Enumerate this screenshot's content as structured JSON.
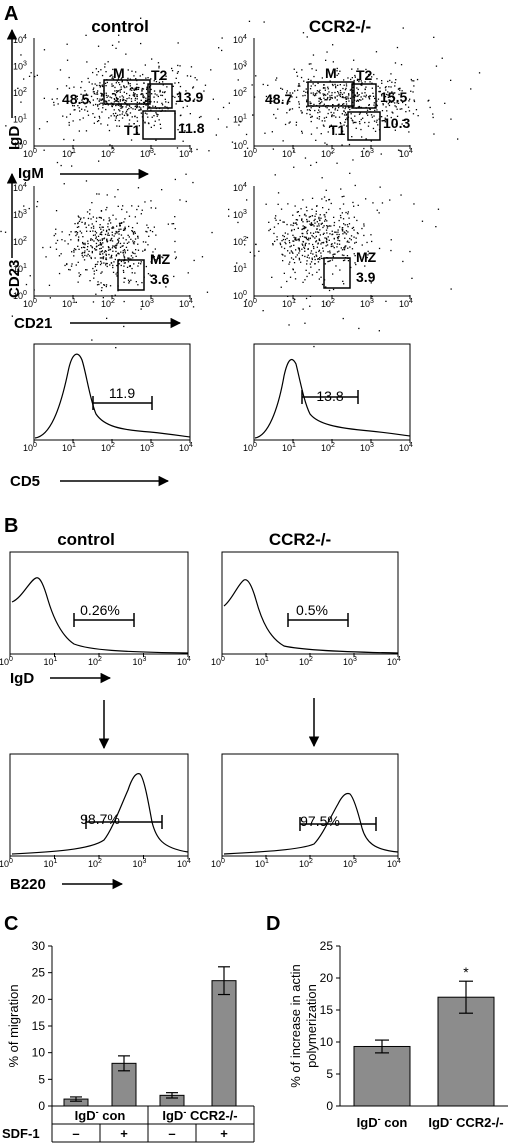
{
  "panel_labels": [
    "A",
    "B",
    "C",
    "D"
  ],
  "panel_a": {
    "columns": [
      "control",
      "CCR2-/-"
    ],
    "axes": {
      "row1": {
        "y": "IgD",
        "x": "IgM"
      },
      "row2": {
        "y": "CD23",
        "x": "CD21"
      },
      "row3": {
        "x": "CD5"
      }
    },
    "tick_labels": [
      "10",
      "0",
      "1",
      "2",
      "3",
      "4"
    ],
    "gate_names": [
      "M",
      "T2",
      "T1",
      "MZ"
    ],
    "row1_values": {
      "control": [
        "48.5",
        "13.9",
        "11.8"
      ],
      "ccr2": [
        "48.7",
        "15.5",
        "10.3"
      ]
    },
    "row2_values": {
      "control": "3.6",
      "ccr2": "3.9"
    },
    "row3_values": {
      "control": "11.9",
      "ccr2": "13.8"
    }
  },
  "panel_b": {
    "columns": [
      "control",
      "CCR2-/-"
    ],
    "axes": {
      "top": "IgD",
      "bottom": "B220"
    },
    "top_values": [
      "0.26%",
      "0.5%"
    ],
    "bottom_values": [
      "98.7%",
      "97.5%"
    ]
  },
  "chart_data": [
    {
      "type": "bar",
      "panel": "C",
      "ylabel": "% of migration",
      "ylim": [
        0,
        30
      ],
      "yticks": [
        0,
        5,
        10,
        15,
        20,
        25,
        30
      ],
      "categories": [
        "IgD- con / SDF-1 −",
        "IgD- con / SDF-1 +",
        "IgD- CCR2-/- / SDF-1 −",
        "IgD- CCR2-/- / SDF-1 +"
      ],
      "values": [
        1.3,
        8.0,
        2.0,
        23.5
      ],
      "errors": [
        0.4,
        1.4,
        0.5,
        2.6
      ],
      "groups": [
        {
          "prefix": "IgD",
          "sup": "-",
          "suffix": " con"
        },
        {
          "prefix": "IgD",
          "sup": "-",
          "suffix": " CCR2-/-"
        }
      ],
      "condition_label": "SDF-1",
      "condition_values": [
        "–",
        "+",
        "–",
        "+"
      ],
      "bar_color": "#8c8c8c"
    },
    {
      "type": "bar",
      "panel": "D",
      "ylabel_lines": [
        "% of increase in actin",
        "polymerization"
      ],
      "ylim": [
        0,
        25
      ],
      "yticks": [
        0,
        5,
        10,
        15,
        20,
        25
      ],
      "categories": [
        "IgD- con",
        "IgD- CCR2-/-"
      ],
      "category_labels": [
        {
          "prefix": "IgD",
          "sup": "-",
          "suffix": " con"
        },
        {
          "prefix": "IgD",
          "sup": "-",
          "suffix": " CCR2-/-"
        }
      ],
      "values": [
        9.3,
        17.0
      ],
      "errors": [
        1.0,
        2.5
      ],
      "annotations": [
        "",
        "*"
      ],
      "bar_color": "#8c8c8c"
    }
  ]
}
